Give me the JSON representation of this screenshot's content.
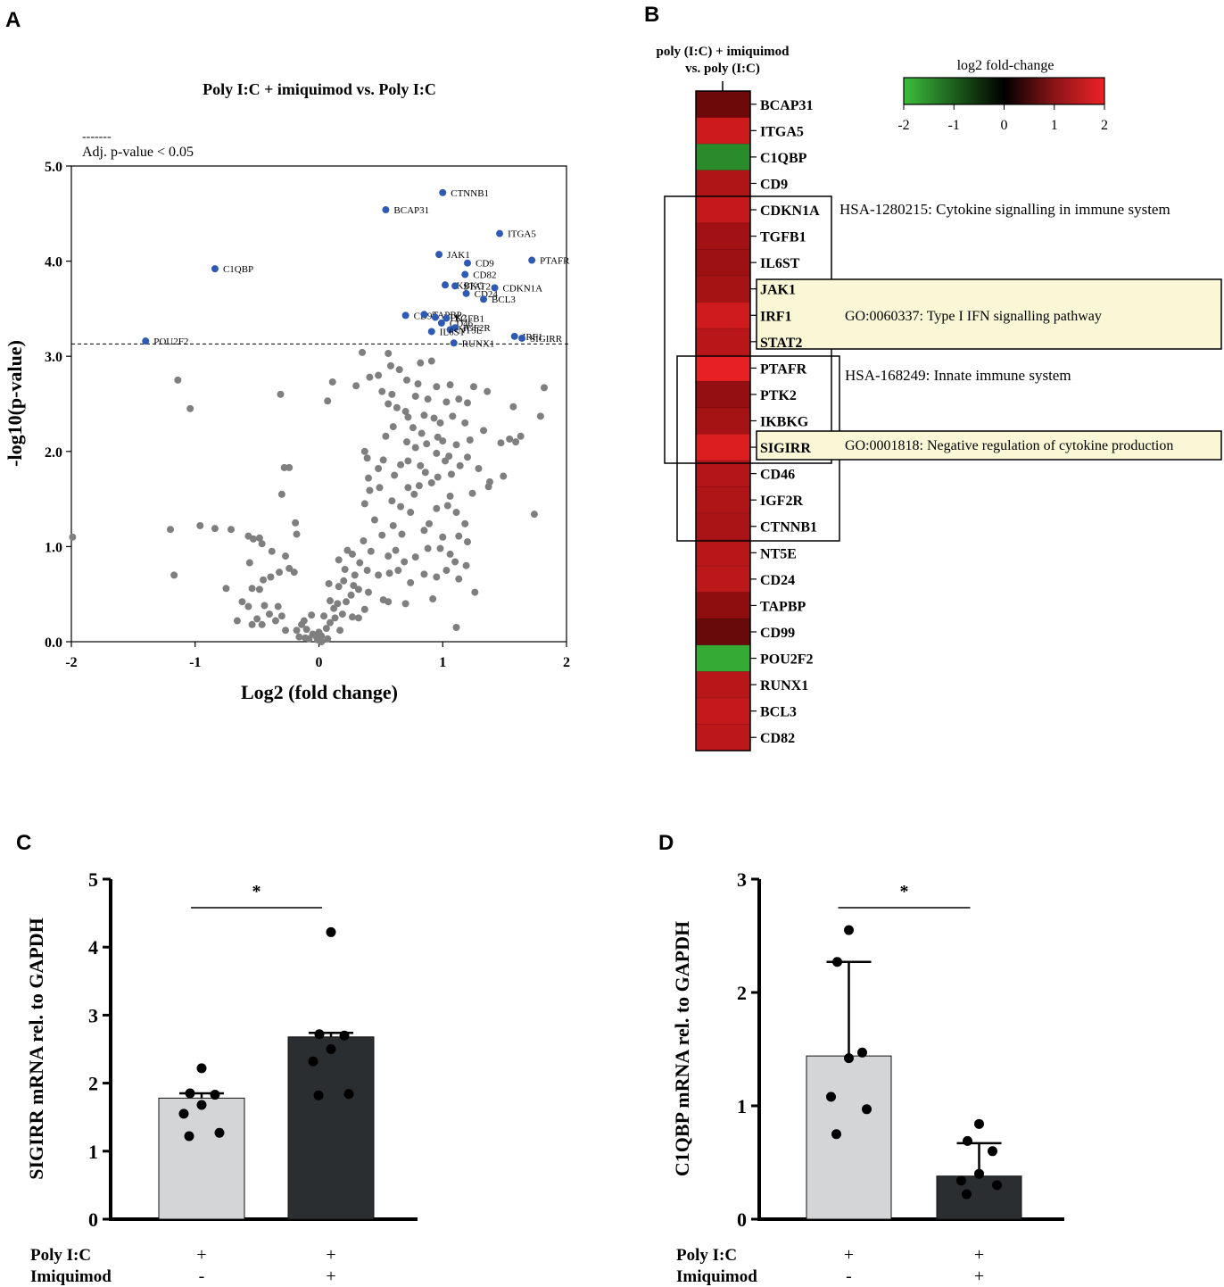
{
  "panels": {
    "a": {
      "letter": "A",
      "title": "Poly I:C + imiquimod vs. Poly I:C",
      "legend_line": "-------",
      "legend_text": "Adj. p-value < 0.05"
    },
    "b": {
      "letter": "B",
      "column_label_1": "poly (I:C) + imiquimod",
      "column_label_2": "vs. poly (I:C)",
      "colorbar_title": "log2 fold-change",
      "colorbar_ticks": [
        "-2",
        "-1",
        "0",
        "1",
        "2"
      ],
      "annotations": [
        {
          "text": "HSA-1280215: Cytokine signalling in immune system"
        },
        {
          "text": "GO:0060337: Type I IFN signalling pathway"
        },
        {
          "text": "HSA-168249: Innate immune system"
        },
        {
          "text": "GO:0001818: Negative regulation of cytokine production"
        }
      ]
    },
    "c": {
      "letter": "C"
    },
    "d": {
      "letter": "D"
    }
  },
  "chart_data": [
    {
      "id": "volcano",
      "type": "scatter",
      "title": "Poly I:C + imiquimod vs. Poly I:C",
      "xlabel": "Log2 (fold change)",
      "ylabel": "-log10(p-value)",
      "xlim": [
        -2,
        2
      ],
      "ylim": [
        0,
        5
      ],
      "xticks": [
        "-2",
        "-1",
        "0",
        "1",
        "2"
      ],
      "yticks": [
        "0.0",
        "1.0",
        "2.0",
        "3.0",
        "4.0",
        "5.0"
      ],
      "threshold_y": 3.13,
      "colors": {
        "significant": "#2f5ab3",
        "nonsignificant": "#7f7f7f"
      },
      "significant_points": [
        {
          "gene": "CTNNB1",
          "x": 1.0,
          "y": 4.72
        },
        {
          "gene": "BCAP31",
          "x": 0.54,
          "y": 4.54
        },
        {
          "gene": "ITGA5",
          "x": 1.46,
          "y": 4.29
        },
        {
          "gene": "JAK1",
          "x": 0.97,
          "y": 4.07
        },
        {
          "gene": "PTAFR",
          "x": 1.72,
          "y": 4.01
        },
        {
          "gene": "CD9",
          "x": 1.2,
          "y": 3.98
        },
        {
          "gene": "C1QBP",
          "x": -0.84,
          "y": 3.92
        },
        {
          "gene": "CD82",
          "x": 1.18,
          "y": 3.86
        },
        {
          "gene": "IKBKG",
          "x": 1.02,
          "y": 3.75
        },
        {
          "gene": "STAT2",
          "x": 1.1,
          "y": 3.74
        },
        {
          "gene": "CDKN1A",
          "x": 1.42,
          "y": 3.72
        },
        {
          "gene": "CD24",
          "x": 1.19,
          "y": 3.66
        },
        {
          "gene": "BCL3",
          "x": 1.33,
          "y": 3.6
        },
        {
          "gene": "CD99",
          "x": 0.7,
          "y": 3.43
        },
        {
          "gene": "TAPBP",
          "x": 0.85,
          "y": 3.44
        },
        {
          "gene": "PTK2",
          "x": 0.94,
          "y": 3.41
        },
        {
          "gene": "TGFB1",
          "x": 1.03,
          "y": 3.4
        },
        {
          "gene": "CD46",
          "x": 0.99,
          "y": 3.35
        },
        {
          "gene": "IGF2R",
          "x": 1.1,
          "y": 3.3
        },
        {
          "gene": "NT5E",
          "x": 1.06,
          "y": 3.28
        },
        {
          "gene": "IL6ST",
          "x": 0.91,
          "y": 3.26
        },
        {
          "gene": "IRF1",
          "x": 1.58,
          "y": 3.21
        },
        {
          "gene": "SIGIRR",
          "x": 1.64,
          "y": 3.19
        },
        {
          "gene": "POU2F2",
          "x": -1.4,
          "y": 3.16
        },
        {
          "gene": "RUNX1",
          "x": 1.09,
          "y": 3.14
        }
      ],
      "nonsignificant_points": [
        [
          0.35,
          3.04
        ],
        [
          0.56,
          3.03
        ],
        [
          0.82,
          2.93
        ],
        [
          0.91,
          2.95
        ],
        [
          0.58,
          2.9
        ],
        [
          0.65,
          2.86
        ],
        [
          0.48,
          2.8
        ],
        [
          0.41,
          2.78
        ],
        [
          0.71,
          2.75
        ],
        [
          0.8,
          2.71
        ],
        [
          0.95,
          2.68
        ],
        [
          1.06,
          2.7
        ],
        [
          1.25,
          2.68
        ],
        [
          1.36,
          2.63
        ],
        [
          0.11,
          2.73
        ],
        [
          0.3,
          2.69
        ],
        [
          0.51,
          2.63
        ],
        [
          0.59,
          2.6
        ],
        [
          0.78,
          2.58
        ],
        [
          0.88,
          2.55
        ],
        [
          1.03,
          2.52
        ],
        [
          1.2,
          2.51
        ],
        [
          1.13,
          2.55
        ],
        [
          -1.14,
          2.75
        ],
        [
          -1.04,
          2.45
        ],
        [
          -0.31,
          2.6
        ],
        [
          0.07,
          2.53
        ],
        [
          0.56,
          2.5
        ],
        [
          0.63,
          2.46
        ],
        [
          0.7,
          2.42
        ],
        [
          0.72,
          2.36
        ],
        [
          0.85,
          2.38
        ],
        [
          0.93,
          2.35
        ],
        [
          0.98,
          2.3
        ],
        [
          1.08,
          2.37
        ],
        [
          1.18,
          2.3
        ],
        [
          1.33,
          2.22
        ],
        [
          1.57,
          2.47
        ],
        [
          1.79,
          2.37
        ],
        [
          1.82,
          2.67
        ],
        [
          0.6,
          2.26
        ],
        [
          0.76,
          2.25
        ],
        [
          0.83,
          2.19
        ],
        [
          0.96,
          2.15
        ],
        [
          1.0,
          2.11
        ],
        [
          1.22,
          2.12
        ],
        [
          1.11,
          2.07
        ],
        [
          1.47,
          2.09
        ],
        [
          1.59,
          2.1
        ],
        [
          1.63,
          2.16
        ],
        [
          0.54,
          2.16
        ],
        [
          0.71,
          2.1
        ],
        [
          0.87,
          2.08
        ],
        [
          0.78,
          2.04
        ],
        [
          0.95,
          1.98
        ],
        [
          0.37,
          2.0
        ],
        [
          0.39,
          1.93
        ],
        [
          1.05,
          1.95
        ],
        [
          1.02,
          1.9
        ],
        [
          0.82,
          1.85
        ],
        [
          0.72,
          1.9
        ],
        [
          0.66,
          1.86
        ],
        [
          0.52,
          1.91
        ],
        [
          0.86,
          1.78
        ],
        [
          0.96,
          1.73
        ],
        [
          1.07,
          1.76
        ],
        [
          1.14,
          1.85
        ],
        [
          1.2,
          1.94
        ],
        [
          1.29,
          1.82
        ],
        [
          0.4,
          1.72
        ],
        [
          0.48,
          1.82
        ],
        [
          0.61,
          1.75
        ],
        [
          0.72,
          1.62
        ],
        [
          0.81,
          1.64
        ],
        [
          0.91,
          1.67
        ],
        [
          1.06,
          1.53
        ],
        [
          1.24,
          1.56
        ],
        [
          1.37,
          1.63
        ],
        [
          1.38,
          1.68
        ],
        [
          1.49,
          1.74
        ],
        [
          1.54,
          2.13
        ],
        [
          -0.24,
          1.83
        ],
        [
          -0.3,
          1.55
        ],
        [
          -0.28,
          1.83
        ],
        [
          0.41,
          1.59
        ],
        [
          0.49,
          1.62
        ],
        [
          0.59,
          1.48
        ],
        [
          0.66,
          1.42
        ],
        [
          0.74,
          1.36
        ],
        [
          0.77,
          1.55
        ],
        [
          0.95,
          1.4
        ],
        [
          1.04,
          1.43
        ],
        [
          1.11,
          1.36
        ],
        [
          1.18,
          1.24
        ],
        [
          0.37,
          1.45
        ],
        [
          0.45,
          1.28
        ],
        [
          0.51,
          1.12
        ],
        [
          0.6,
          1.22
        ],
        [
          0.67,
          1.13
        ],
        [
          0.89,
          1.24
        ],
        [
          0.85,
          1.17
        ],
        [
          1.0,
          1.1
        ],
        [
          1.13,
          1.11
        ],
        [
          1.2,
          1.05
        ],
        [
          1.74,
          1.34
        ],
        [
          0.36,
          1.06
        ],
        [
          0.42,
          0.95
        ],
        [
          0.56,
          0.9
        ],
        [
          0.62,
          0.96
        ],
        [
          0.69,
          0.84
        ],
        [
          0.78,
          0.89
        ],
        [
          0.88,
          0.98
        ],
        [
          0.98,
          0.98
        ],
        [
          1.06,
          0.92
        ],
        [
          1.1,
          0.84
        ],
        [
          1.19,
          0.8
        ],
        [
          0.33,
          0.83
        ],
        [
          0.39,
          0.75
        ],
        [
          0.48,
          0.7
        ],
        [
          0.57,
          0.72
        ],
        [
          0.64,
          0.75
        ],
        [
          0.74,
          0.62
        ],
        [
          0.85,
          0.71
        ],
        [
          0.95,
          0.68
        ],
        [
          1.03,
          0.75
        ],
        [
          1.13,
          0.66
        ],
        [
          -1.99,
          1.1
        ],
        [
          -1.2,
          1.18
        ],
        [
          -0.96,
          1.22
        ],
        [
          -0.84,
          1.19
        ],
        [
          -0.71,
          1.18
        ],
        [
          -0.57,
          1.11
        ],
        [
          -0.53,
          1.08
        ],
        [
          -0.48,
          1.09
        ],
        [
          -0.46,
          1.03
        ],
        [
          -0.19,
          1.25
        ],
        [
          -0.18,
          1.13
        ],
        [
          -0.38,
          0.95
        ],
        [
          -0.27,
          0.9
        ],
        [
          -0.24,
          0.77
        ],
        [
          -0.2,
          0.73
        ],
        [
          -0.32,
          0.73
        ],
        [
          -0.39,
          0.68
        ],
        [
          -0.45,
          0.65
        ],
        [
          -0.54,
          0.56
        ],
        [
          -0.48,
          0.55
        ],
        [
          -0.56,
          0.83
        ],
        [
          -0.75,
          0.56
        ],
        [
          -1.17,
          0.7
        ],
        [
          0.16,
          0.86
        ],
        [
          0.23,
          0.96
        ],
        [
          0.27,
          0.92
        ],
        [
          0.21,
          0.76
        ],
        [
          0.29,
          0.7
        ],
        [
          0.2,
          0.64
        ],
        [
          0.28,
          0.59
        ],
        [
          0.32,
          0.55
        ],
        [
          0.4,
          0.52
        ],
        [
          0.52,
          0.44
        ],
        [
          0.56,
          0.42
        ],
        [
          0.7,
          0.4
        ],
        [
          0.92,
          0.45
        ],
        [
          1.26,
          0.52
        ],
        [
          0.08,
          0.61
        ],
        [
          0.16,
          0.58
        ],
        [
          0.26,
          0.49
        ],
        [
          0.22,
          0.42
        ],
        [
          0.15,
          0.4
        ],
        [
          0.12,
          0.35
        ],
        [
          0.19,
          0.29
        ],
        [
          0.27,
          0.26
        ],
        [
          0.32,
          0.25
        ],
        [
          0.37,
          0.34
        ],
        [
          0.13,
          0.25
        ],
        [
          0.09,
          0.2
        ],
        [
          0.17,
          0.12
        ],
        [
          0.06,
          0.14
        ],
        [
          0.04,
          0.27
        ],
        [
          0.07,
          0.03
        ],
        [
          0.02,
          0.06
        ],
        [
          -0.01,
          0.02
        ],
        [
          0.0,
          0.1
        ],
        [
          -0.05,
          0.08
        ],
        [
          -0.11,
          0.04
        ],
        [
          -0.16,
          0.05
        ],
        [
          -0.1,
          0.13
        ],
        [
          -0.14,
          0.18
        ],
        [
          -0.18,
          0.12
        ],
        [
          -0.12,
          0.22
        ],
        [
          -0.3,
          0.27
        ],
        [
          -0.35,
          0.22
        ],
        [
          -0.4,
          0.29
        ],
        [
          -0.46,
          0.18
        ],
        [
          -0.5,
          0.24
        ],
        [
          -0.54,
          0.18
        ],
        [
          -0.57,
          0.37
        ],
        [
          -0.44,
          0.38
        ],
        [
          -0.33,
          0.37
        ],
        [
          -0.62,
          0.42
        ],
        [
          -0.66,
          0.22
        ],
        [
          -0.06,
          0.28
        ],
        [
          -0.27,
          0.12
        ],
        [
          -0.08,
          0.03
        ],
        [
          0.09,
          0.43
        ],
        [
          1.11,
          0.15
        ],
        [
          0.02,
          0.0
        ],
        [
          -0.02,
          0.05
        ]
      ]
    },
    {
      "id": "heatmap",
      "type": "heatmap",
      "colorbar_title": "log2 fold-change",
      "colorbar_range": [
        -2,
        2
      ],
      "genes": [
        "BCAP31",
        "ITGA5",
        "C1QBP",
        "CD9",
        "CDKN1A",
        "TGFB1",
        "IL6ST",
        "JAK1",
        "IRF1",
        "STAT2",
        "PTAFR",
        "PTK2",
        "IKBKG",
        "SIGIRR",
        "CD46",
        "IGF2R",
        "CTNNB1",
        "NT5E",
        "CD24",
        "TAPBP",
        "CD99",
        "POU2F2",
        "RUNX1",
        "BCL3",
        "CD82"
      ],
      "values": [
        0.55,
        1.55,
        -1.35,
        1.2,
        1.45,
        1.05,
        1.0,
        1.1,
        1.6,
        1.3,
        1.9,
        0.9,
        1.1,
        1.75,
        1.25,
        1.2,
        1.15,
        1.3,
        1.35,
        0.85,
        0.5,
        -1.75,
        1.3,
        1.45,
        1.35
      ]
    },
    {
      "id": "sigirr",
      "type": "bar",
      "ylabel": "SIGIRR mRNA rel. to GAPDH",
      "ylim": [
        0,
        5
      ],
      "yticks": [
        "0",
        "1",
        "2",
        "3",
        "4",
        "5"
      ],
      "categories": [
        "Poly I:C",
        "Imiquimod"
      ],
      "condition_labels": [
        "Poly I:C",
        "Imiquimod"
      ],
      "groups": [
        {
          "poly": "+",
          "imiquimod": "-",
          "mean": 1.78,
          "error": 0.07,
          "color": "#d4d5d7",
          "points": [
            2.22,
            1.85,
            1.83,
            1.68,
            1.55,
            1.27,
            1.22
          ]
        },
        {
          "poly": "+",
          "imiquimod": "+",
          "mean": 2.68,
          "error": 0.06,
          "color": "#2b2e31",
          "points": [
            4.22,
            2.72,
            2.7,
            2.5,
            2.32,
            1.84,
            1.82
          ]
        }
      ],
      "significance": "*"
    },
    {
      "id": "c1qbp",
      "type": "bar",
      "ylabel": "C1QBP mRNA rel. to GAPDH",
      "ylim": [
        0,
        3
      ],
      "yticks": [
        "0",
        "1",
        "2",
        "3"
      ],
      "categories": [
        "Poly I:C",
        "Imiquimod"
      ],
      "condition_labels": [
        "Poly I:C",
        "Imiquimod"
      ],
      "groups": [
        {
          "poly": "+",
          "imiquimod": "-",
          "mean": 1.44,
          "error": 0.83,
          "color": "#d4d5d7",
          "points": [
            2.55,
            2.27,
            1.47,
            1.42,
            1.08,
            0.97,
            0.75
          ]
        },
        {
          "poly": "+",
          "imiquimod": "+",
          "mean": 0.38,
          "error": 0.29,
          "color": "#2b2e31",
          "points": [
            0.84,
            0.69,
            0.6,
            0.4,
            0.34,
            0.3,
            0.22
          ]
        }
      ],
      "significance": "*"
    }
  ]
}
